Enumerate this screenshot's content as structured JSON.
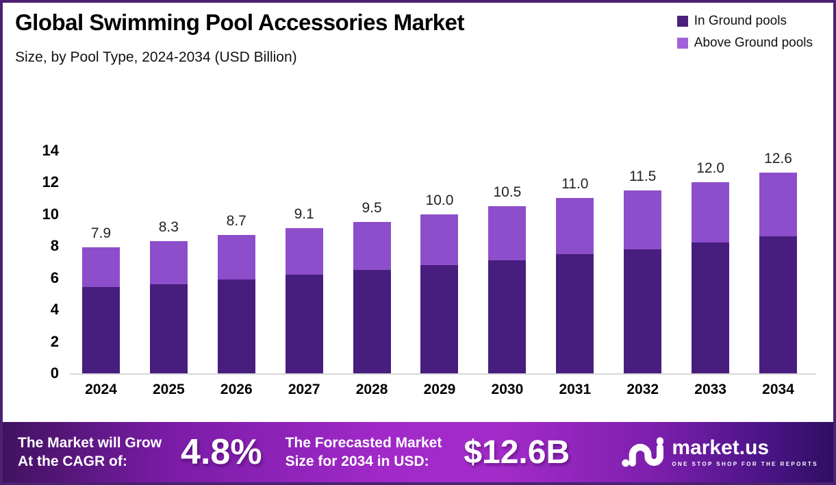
{
  "page": {
    "border_color": "#4b2173",
    "background": "#ffffff"
  },
  "header": {
    "title": "Global Swimming Pool Accessories Market",
    "subtitle": "Size, by Pool Type, 2024-2034 (USD Billion)"
  },
  "legend": {
    "items": [
      {
        "label": "In Ground pools",
        "color": "#4a2179"
      },
      {
        "label": "Above Ground pools",
        "color": "#a263d9"
      }
    ]
  },
  "chart_data": {
    "type": "bar",
    "stacked": true,
    "title": "Global Swimming Pool Accessories Market Size, by Pool Type, 2024-2034 (USD Billion)",
    "categories": [
      "2024",
      "2025",
      "2026",
      "2027",
      "2028",
      "2029",
      "2030",
      "2031",
      "2032",
      "2033",
      "2034"
    ],
    "series": [
      {
        "name": "In Ground pools",
        "color": "#471d7d",
        "values": [
          5.4,
          5.6,
          5.9,
          6.2,
          6.5,
          6.8,
          7.1,
          7.5,
          7.8,
          8.2,
          8.6
        ]
      },
      {
        "name": "Above Ground pools",
        "color": "#8d4ecb",
        "values": [
          2.5,
          2.7,
          2.8,
          2.9,
          3.0,
          3.2,
          3.4,
          3.5,
          3.7,
          3.8,
          4.0
        ]
      }
    ],
    "totals_labels": [
      "7.9",
      "8.3",
      "8.7",
      "9.1",
      "9.5",
      "10.0",
      "10.5",
      "11.0",
      "11.5",
      "12.0",
      "12.6"
    ],
    "yticks": [
      0,
      2,
      4,
      6,
      8,
      10,
      12,
      14
    ],
    "ylim": [
      0,
      14
    ],
    "xlabel": "",
    "ylabel": "",
    "grid": false,
    "legend_position": "top-right"
  },
  "footer": {
    "cagr_line1": "The Market will Grow",
    "cagr_line2": "At the CAGR of:",
    "cagr_value": "4.8%",
    "forecast_line1": "The Forecasted Market",
    "forecast_line2": "Size for 2034 in USD:",
    "forecast_value": "$12.6B",
    "brand": "market.us",
    "brand_tagline": "ONE STOP SHOP FOR THE REPORTS"
  }
}
